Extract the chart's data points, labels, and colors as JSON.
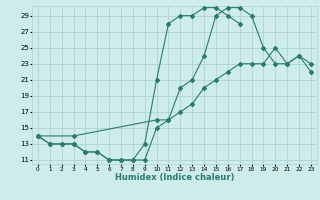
{
  "title": "",
  "xlabel": "Humidex (Indice chaleur)",
  "bg_color": "#ceecea",
  "grid_color": "#aed4d0",
  "line_color": "#2a7a72",
  "xlim": [
    -0.5,
    23.5
  ],
  "ylim": [
    10.5,
    30.2
  ],
  "xticks": [
    0,
    1,
    2,
    3,
    4,
    5,
    6,
    7,
    8,
    9,
    10,
    11,
    12,
    13,
    14,
    15,
    16,
    17,
    18,
    19,
    20,
    21,
    22,
    23
  ],
  "yticks": [
    11,
    13,
    15,
    17,
    19,
    21,
    23,
    25,
    27,
    29
  ],
  "line1_x": [
    0,
    1,
    2,
    3,
    4,
    5,
    6,
    7,
    8,
    9,
    10,
    11,
    12,
    13,
    14,
    15,
    16,
    17
  ],
  "line1_y": [
    14,
    13,
    13,
    13,
    12,
    12,
    11,
    11,
    11,
    13,
    21,
    28,
    29,
    29,
    30,
    30,
    29,
    28
  ],
  "line2_x": [
    0,
    1,
    2,
    3,
    4,
    5,
    6,
    7,
    8,
    9,
    10,
    11,
    12,
    13,
    14,
    15,
    16,
    17,
    18,
    19,
    20,
    21,
    22,
    23
  ],
  "line2_y": [
    14,
    13,
    13,
    13,
    12,
    12,
    11,
    11,
    11,
    11,
    15,
    16,
    20,
    21,
    24,
    29,
    30,
    30,
    29,
    25,
    23,
    23,
    24,
    23
  ],
  "line3_x": [
    0,
    3,
    10,
    11,
    12,
    13,
    14,
    15,
    16,
    17,
    18,
    19,
    20,
    21,
    22,
    23
  ],
  "line3_y": [
    14,
    14,
    16,
    16,
    17,
    18,
    20,
    21,
    22,
    23,
    23,
    23,
    25,
    23,
    24,
    22
  ]
}
